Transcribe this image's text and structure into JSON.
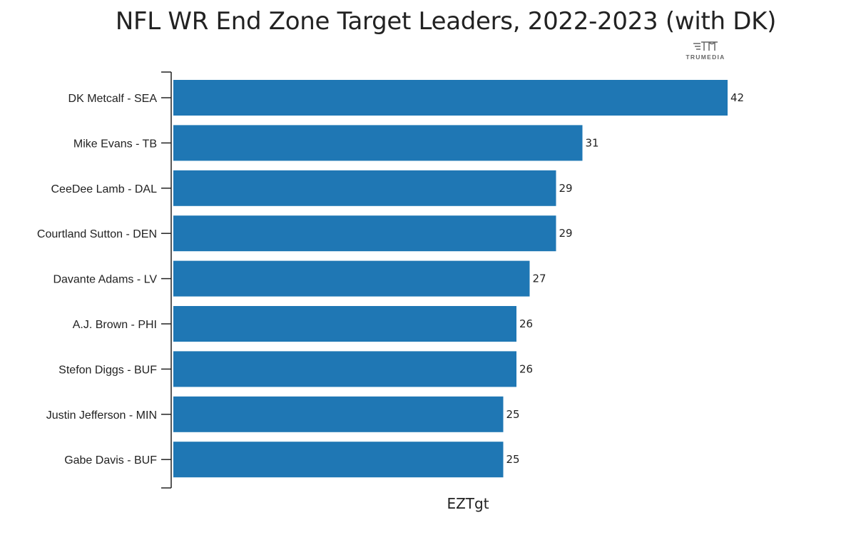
{
  "brand": {
    "logo_text": "TRUMEDIA"
  },
  "chart_data": {
    "type": "bar",
    "orientation": "horizontal",
    "title": "NFL WR End Zone Target Leaders, 2022-2023 (with DK)",
    "xlabel": "EZTgt",
    "ylabel": "",
    "categories": [
      "DK Metcalf - SEA",
      "Mike Evans - TB",
      "CeeDee Lamb - DAL",
      "Courtland Sutton - DEN",
      "Davante Adams - LV",
      "A.J. Brown - PHI",
      "Stefon Diggs - BUF",
      "Justin Jefferson - MIN",
      "Gabe Davis - BUF"
    ],
    "values": [
      42,
      31,
      29,
      29,
      27,
      26,
      26,
      25,
      25
    ],
    "xlim": [
      0,
      42
    ],
    "bar_color": "#1f77b4",
    "grid": false,
    "legend": "none",
    "data_labels": true
  }
}
